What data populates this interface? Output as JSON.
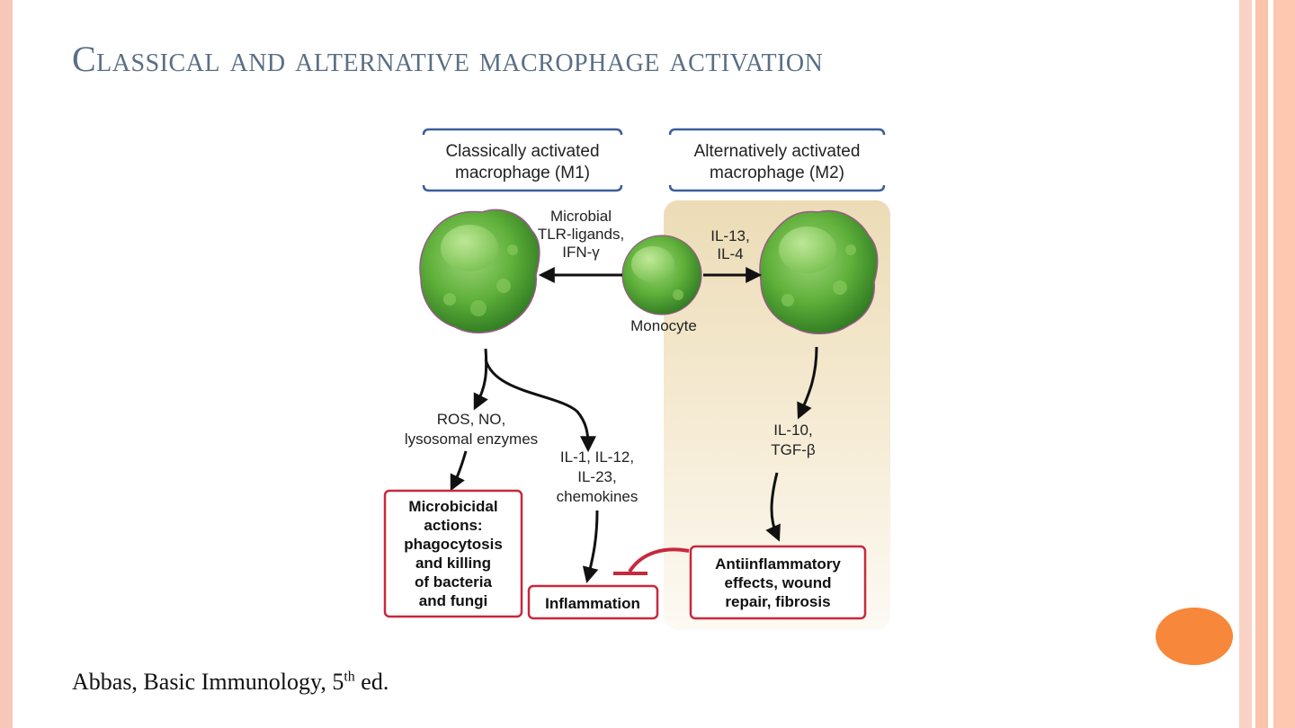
{
  "slide": {
    "title": "Classical and alternative macrophage activation",
    "citation": {
      "text": "Abbas, Basic Immunology, 5",
      "superscript": "th",
      "suffix": " ed."
    }
  },
  "diagram": {
    "m1_header": [
      "Classically activated",
      "macrophage (M1)"
    ],
    "m2_header": [
      "Alternatively activated",
      "macrophage (M2)"
    ],
    "m1_stimulus": [
      "Microbial",
      "TLR-ligands,",
      "IFN-γ"
    ],
    "m2_stimulus": [
      "IL-13,",
      "IL-4"
    ],
    "monocyte_label": "Monocyte",
    "ros_label": [
      "ROS, NO,",
      "lysosomal enzymes"
    ],
    "cytokines_label": [
      "IL-1, IL-12,",
      "IL-23,",
      "chemokines"
    ],
    "m2_cytokines_label": [
      "IL-10,",
      "TGF-β"
    ],
    "microbicidal_box": [
      "Microbicidal",
      "actions:",
      "phagocytosis",
      "and killing",
      "of bacteria",
      "and fungi"
    ],
    "inflammation_box": "Inflammation",
    "antiinflammatory_box": [
      "Antiinflammatory",
      "effects, wound",
      "repair, fibrosis"
    ]
  },
  "colors": {
    "title": "#5a6f84",
    "outcome_box_border": "#c8283c",
    "cell_green": "#5fb03a",
    "m2_background": "#efe0bf",
    "header_border": "#3b5f9a",
    "accent_orange": "#f7873a",
    "border_salmon": "#f7c7b8"
  }
}
